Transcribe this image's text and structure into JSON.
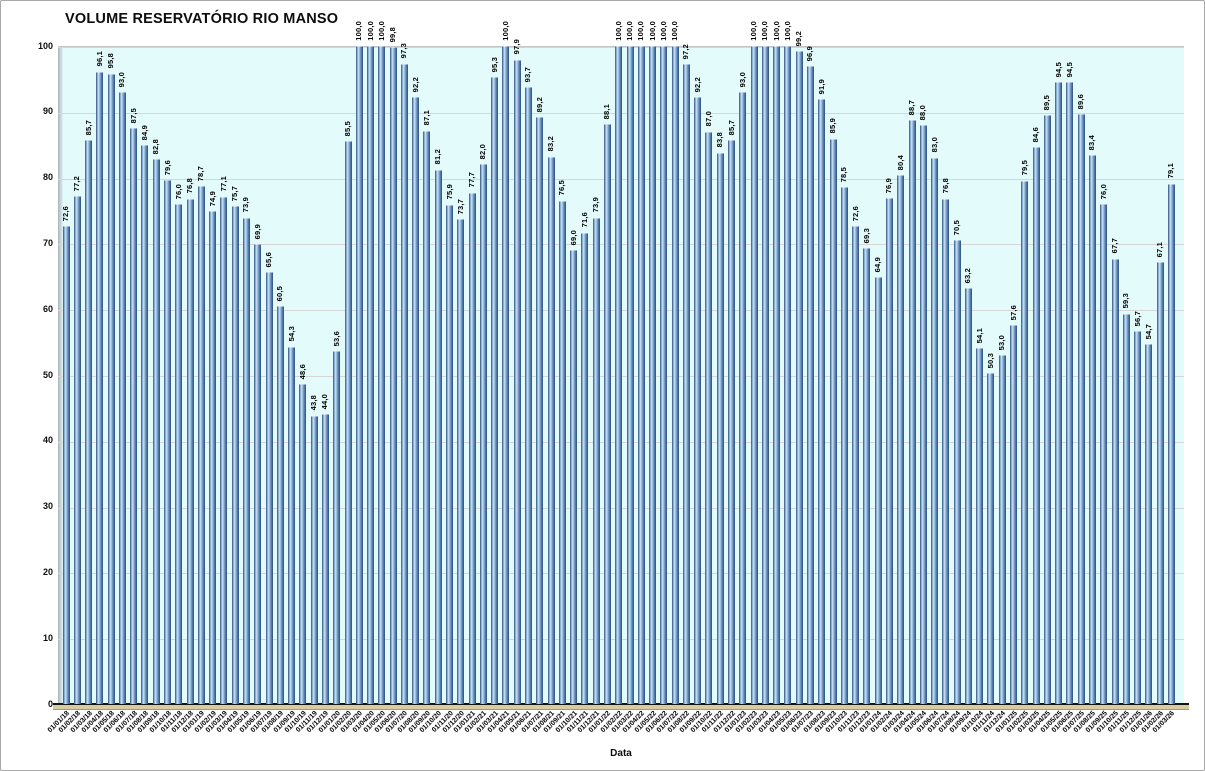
{
  "chart": {
    "title": "VOLUME RESERVATÓRIO RIO MANSO",
    "xlabel": "Data"
  },
  "chart_data": {
    "type": "bar",
    "title": "VOLUME RESERVATÓRIO RIO MANSO",
    "xlabel": "Data",
    "ylabel": "",
    "ylim": [
      0,
      100
    ],
    "yticks": [
      0,
      10,
      20,
      30,
      40,
      50,
      60,
      70,
      80,
      90,
      100
    ],
    "grid": true,
    "legend": "none",
    "decimal_separator": ",",
    "colors": {
      "bar_main": "#5c87ba",
      "bar_edge": "#2e4d77",
      "bar_highlight": "#cfe3f3",
      "plot_background": "#e4fbfb",
      "floor": "#d8cda2",
      "gridline": "#d6d6d6"
    },
    "categories": [
      "01/01/18",
      "01/02/18",
      "01/03/18",
      "01/04/18",
      "01/05/18",
      "01/06/18",
      "01/07/18",
      "01/08/18",
      "01/09/18",
      "01/10/18",
      "01/11/18",
      "01/12/18",
      "01/01/19",
      "01/02/19",
      "01/03/19",
      "01/04/19",
      "01/05/19",
      "01/06/19",
      "01/07/19",
      "01/08/19",
      "01/09/19",
      "01/10/19",
      "01/11/19",
      "01/12/19",
      "01/01/20",
      "01/02/20",
      "01/03/20",
      "01/04/20",
      "01/05/20",
      "01/06/20",
      "01/07/20",
      "01/08/20",
      "01/09/20",
      "01/10/20",
      "01/11/20",
      "01/12/20",
      "01/01/21",
      "01/02/21",
      "01/03/21",
      "01/04/21",
      "01/05/21",
      "01/06/21",
      "01/07/21",
      "01/08/21",
      "01/09/21",
      "01/10/21",
      "01/11/21",
      "01/12/21",
      "01/01/22",
      "01/02/22",
      "01/03/22",
      "01/04/22",
      "01/05/22",
      "01/06/22",
      "01/07/22",
      "01/08/22",
      "01/09/22",
      "01/10/22",
      "01/11/22",
      "01/12/22",
      "01/01/23",
      "01/02/23",
      "01/03/23",
      "01/04/23",
      "01/05/23",
      "01/06/23",
      "01/07/23",
      "01/08/23",
      "01/09/23",
      "01/10/23",
      "01/11/23",
      "01/12/23",
      "01/01/24",
      "01/02/24",
      "01/03/24",
      "01/04/24",
      "01/05/24",
      "01/06/24",
      "01/07/24",
      "01/08/24",
      "01/09/24",
      "01/10/24",
      "01/11/24",
      "01/12/24",
      "01/01/25",
      "01/02/25",
      "01/03/25",
      "01/04/25",
      "01/05/25",
      "01/06/25",
      "01/07/25",
      "01/08/25",
      "01/09/25",
      "01/10/25",
      "01/11/25",
      "01/12/25",
      "01/01/26",
      "01/02/26",
      "01/03/26"
    ],
    "values": [
      72.6,
      77.2,
      85.7,
      96.1,
      95.8,
      93.0,
      87.5,
      84.9,
      82.8,
      79.6,
      76.0,
      76.8,
      78.7,
      74.9,
      77.1,
      75.7,
      73.9,
      69.9,
      65.6,
      60.5,
      54.3,
      48.6,
      43.8,
      44.0,
      53.6,
      85.5,
      100.0,
      100.0,
      100.0,
      99.8,
      97.3,
      92.2,
      87.1,
      81.2,
      75.9,
      73.7,
      77.7,
      82.0,
      95.3,
      100.0,
      97.9,
      93.7,
      89.2,
      83.2,
      76.5,
      69.0,
      71.6,
      73.9,
      88.1,
      100.0,
      100.0,
      100.0,
      100.0,
      100.0,
      100.0,
      97.2,
      92.2,
      87.0,
      83.8,
      85.7,
      93.0,
      100.0,
      100.0,
      100.0,
      100.0,
      99.2,
      96.9,
      91.9,
      85.9,
      78.5,
      72.6,
      69.3,
      64.9,
      76.9,
      80.4,
      88.7,
      88.0,
      83.0,
      76.8,
      70.5,
      63.2,
      54.1,
      50.3,
      53.0,
      57.6,
      79.5,
      84.6,
      89.5,
      94.5,
      94.5,
      89.6,
      83.4,
      76.0,
      67.7,
      59.3,
      56.7,
      54.7,
      67.1,
      79.1
    ]
  }
}
